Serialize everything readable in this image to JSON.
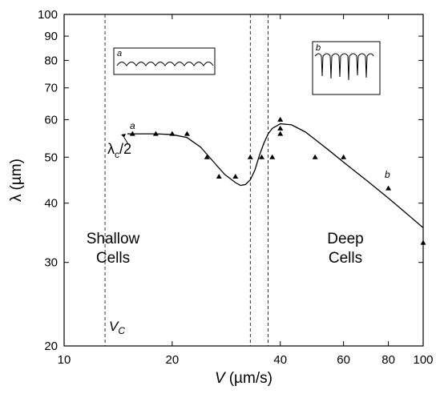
{
  "chart_data": {
    "type": "scatter",
    "x_label": {
      "symbol": "V",
      "unit": "(µm/s)"
    },
    "y_label": {
      "symbol": "λ",
      "unit": "(µm)"
    },
    "xscale": "log",
    "yscale": "log",
    "xlim": [
      10,
      100
    ],
    "ylim": [
      20,
      100
    ],
    "xticks": [
      10,
      20,
      40,
      60,
      80,
      100
    ],
    "yticks": [
      20,
      30,
      40,
      50,
      60,
      70,
      80,
      90,
      100
    ],
    "series": [
      {
        "color": "#000000",
        "x": [
          15.5,
          18,
          20,
          22,
          25,
          27,
          30,
          33,
          35.5,
          38,
          40,
          40,
          40,
          50,
          60,
          80,
          100
        ],
        "values": [
          56,
          56,
          56,
          56,
          50,
          45.5,
          45.5,
          50,
          50,
          50,
          60,
          57.5,
          56,
          50,
          50,
          43,
          33
        ]
      },
      {
        "color": "#000000",
        "style": "line",
        "x": [
          15,
          18,
          20,
          22,
          24,
          26,
          28,
          30,
          31,
          32,
          33,
          34,
          35,
          36,
          37,
          38,
          40,
          43,
          47,
          50,
          55,
          60,
          70,
          80,
          90,
          100
        ],
        "values": [
          56,
          56,
          55.8,
          55,
          52.5,
          49,
          46,
          44.2,
          43.6,
          43.8,
          44.8,
          47,
          50.5,
          53.5,
          56,
          57.5,
          58.8,
          58.5,
          56.5,
          54.5,
          51.5,
          48.8,
          44.5,
          41,
          38,
          35.5
        ]
      }
    ],
    "vlines": [
      13,
      33,
      37
    ],
    "regions": [
      {
        "line1": "Shallow",
        "line2": "Cells"
      },
      {
        "line1": "Deep",
        "line2": "Cells"
      }
    ],
    "critical_label": {
      "main": "V",
      "sub": "C"
    },
    "lambda_label": {
      "main": "λ",
      "sub": "c",
      "rest": "/2"
    },
    "point_labels": [
      "a",
      "b"
    ],
    "insets": [
      "a",
      "b"
    ]
  }
}
